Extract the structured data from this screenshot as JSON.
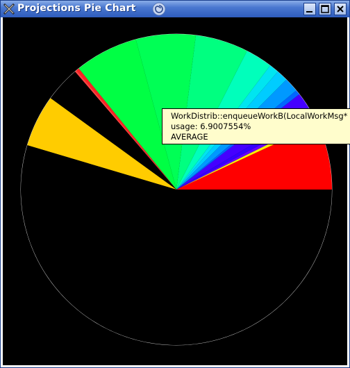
{
  "window": {
    "title": "Projections Pie Chart",
    "app_icon": "x-window-icon",
    "title_icon": "swirl-icon",
    "controls": [
      "minimize-icon",
      "maximize-icon",
      "close-icon"
    ]
  },
  "chart_data": {
    "type": "pie",
    "start_angle_deg": 0,
    "direction": "counterclockwise",
    "background_color": "#000000",
    "outline_color": "#d8d8d8",
    "slices": [
      {
        "value": 6.9,
        "color": "#ff0000"
      },
      {
        "value": 0.4,
        "color": "#ffee00"
      },
      {
        "value": 0.5,
        "color": "#6600ff"
      },
      {
        "value": 0.7,
        "color": "#3300ff"
      },
      {
        "value": 2.0,
        "color": "#4400ff"
      },
      {
        "value": 0.5,
        "color": "#0066ff"
      },
      {
        "value": 1.5,
        "color": "#0099ff"
      },
      {
        "value": 1.2,
        "color": "#00ccff"
      },
      {
        "value": 1.0,
        "color": "#00e5f0"
      },
      {
        "value": 2.8,
        "color": "#00ffbb"
      },
      {
        "value": 5.5,
        "color": "#00ff80"
      },
      {
        "value": 6.2,
        "color": "#00ff55"
      },
      {
        "value": 6.6,
        "color": "#00ff44"
      },
      {
        "value": 0.3,
        "color": "#ff2222"
      },
      {
        "value": 0.2,
        "color": "#ff4444"
      },
      {
        "value": 3.7,
        "color": "#000000"
      },
      {
        "value": 5.4,
        "color": "#ffcc00"
      },
      {
        "value": 54.6,
        "color": "#000000"
      }
    ]
  },
  "tooltip": {
    "line1": "WorkDistrib::enqueueWorkB(LocalWorkMsg* in",
    "line2": "usage: 6.9007554%",
    "line3": "AVERAGE"
  }
}
